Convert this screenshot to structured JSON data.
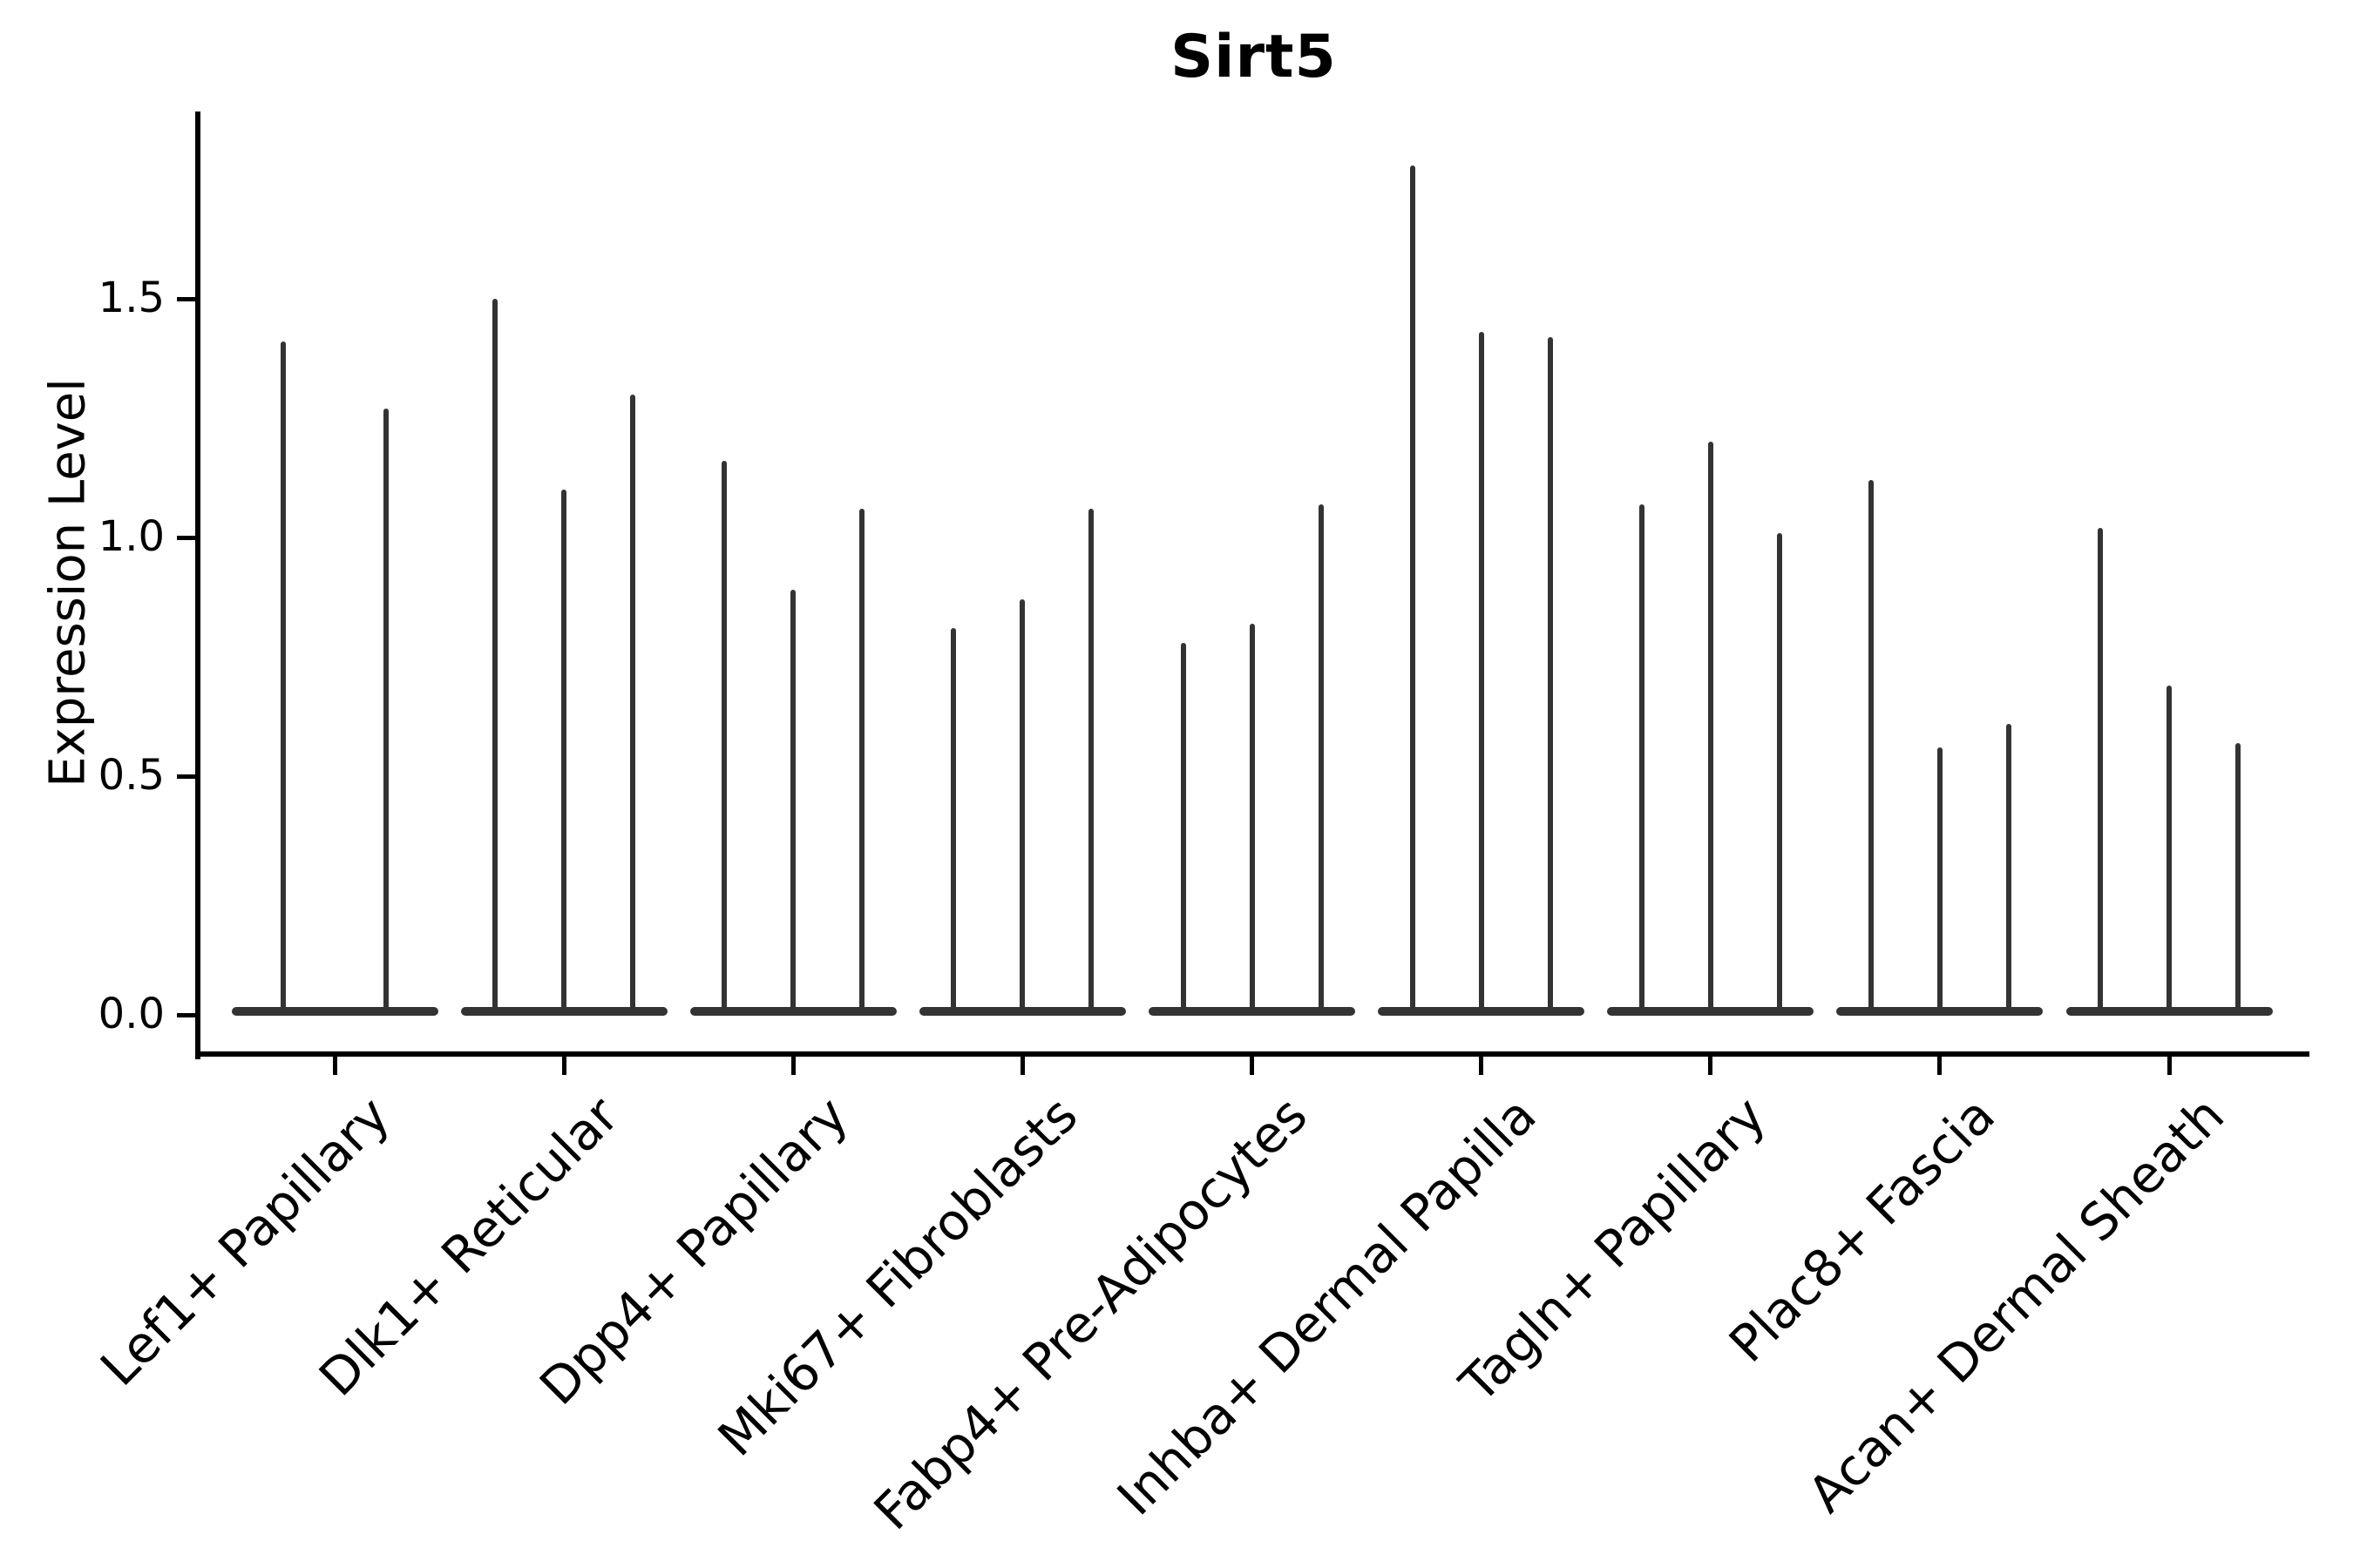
{
  "figure": {
    "title": "Sirt5",
    "background": "#ffffff"
  },
  "axes": {
    "ylabel": "Expression Level",
    "ytick_labels": [
      "0.0",
      "0.5",
      "1.0",
      "1.5"
    ],
    "spine_color": "#000000",
    "text_color": "#000000"
  },
  "chart_data": {
    "type": "violin",
    "title": "Sirt5",
    "xlabel": "",
    "ylabel": "Expression Level",
    "ylim": [
      -0.09,
      1.87
    ],
    "yticks": [
      0.0,
      0.5,
      1.0,
      1.5
    ],
    "grid": false,
    "legend": "none",
    "violin_color": "#333333",
    "shape_note": "Each violin is an extremely narrow spike: density mass sits at expression 0 (flat base bar) with a thin tail rising to the listed peak value.",
    "categories": [
      "Lef1+ Papillary",
      "Dlk1+ Reticular",
      "Dpp4+ Papillary",
      "Mki67+ Fibroblasts",
      "Fabp4+ Pre-Adipocytes",
      "Inhba+ Dermal Papilla",
      "Tagln+ Papillary",
      "Plac8+ Fascia",
      "Acan+ Dermal Sheath"
    ],
    "groups": [
      {
        "category": "Lef1+ Papillary",
        "violin_peaks": [
          1.41,
          1.27
        ]
      },
      {
        "category": "Dlk1+ Reticular",
        "violin_peaks": [
          1.5,
          1.1,
          1.3
        ]
      },
      {
        "category": "Dpp4+ Papillary",
        "violin_peaks": [
          1.16,
          0.89,
          1.06
        ]
      },
      {
        "category": "Mki67+ Fibroblasts",
        "violin_peaks": [
          0.81,
          0.87,
          1.06
        ]
      },
      {
        "category": "Fabp4+ Pre-Adipocytes",
        "violin_peaks": [
          0.78,
          0.82,
          1.07
        ]
      },
      {
        "category": "Inhba+ Dermal Papilla",
        "violin_peaks": [
          1.78,
          1.43,
          1.42
        ]
      },
      {
        "category": "Tagln+ Papillary",
        "violin_peaks": [
          1.07,
          1.2,
          1.01
        ]
      },
      {
        "category": "Plac8+ Fascia",
        "violin_peaks": [
          1.12,
          0.56,
          0.61
        ]
      },
      {
        "category": "Acan+ Dermal Sheath",
        "violin_peaks": [
          1.02,
          0.69,
          0.57
        ]
      }
    ]
  }
}
